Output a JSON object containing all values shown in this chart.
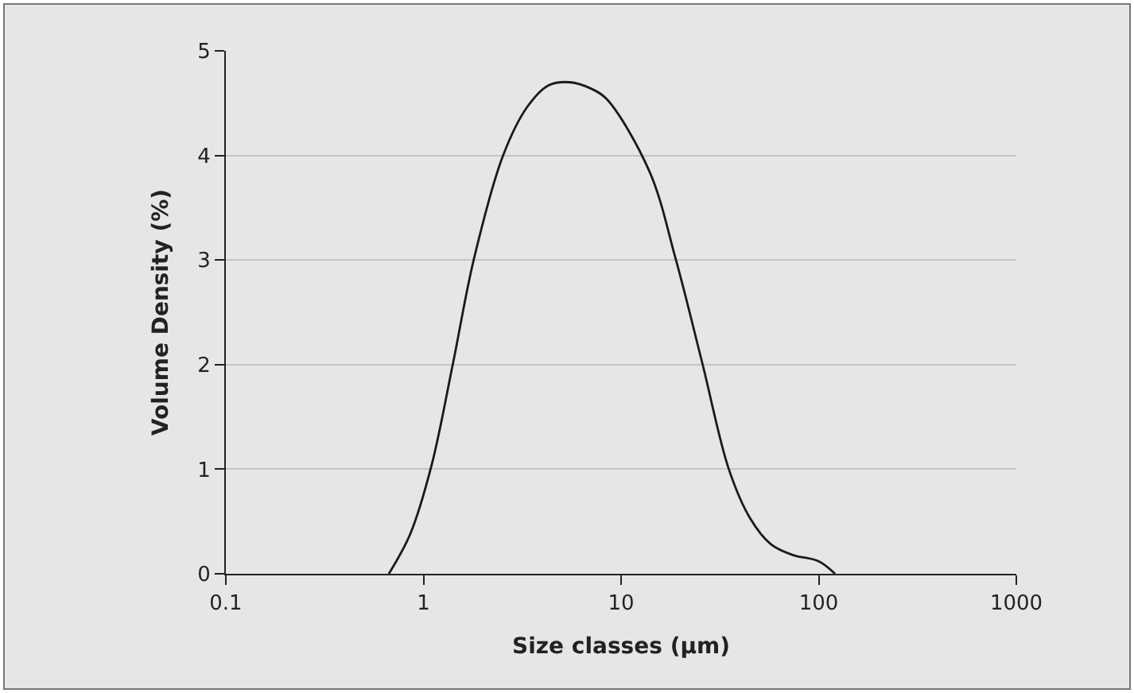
{
  "chart_data": {
    "type": "line",
    "xlabel": "Size classes (µm)",
    "ylabel": "Volume Density (%)",
    "log": "x",
    "grid": "y",
    "marker": "none",
    "line_style": "solid",
    "xlim": [
      0.1,
      1000
    ],
    "xticks": [
      0.1,
      1,
      10,
      100,
      1000
    ],
    "ylim": [
      0,
      5
    ],
    "yticks": [
      0,
      1,
      2,
      3,
      4,
      5
    ],
    "x": [
      0.668,
      0.857,
      1.1,
      1.41,
      1.8,
      2.53,
      3.34,
      4.29,
      5.5,
      7.03,
      8.45,
      13.9,
      18.9,
      25.8,
      35.1,
      45,
      57.5,
      73.8,
      100,
      121
    ],
    "series": [
      {
        "color": "#1a1a1a",
        "values": [
          0,
          0.38,
          1.04,
          2.01,
          3.01,
          4.0,
          4.46,
          4.67,
          4.7,
          4.64,
          4.54,
          3.85,
          3.01,
          2.01,
          1.0,
          0.53,
          0.28,
          0.18,
          0.12,
          0
        ]
      }
    ]
  }
}
